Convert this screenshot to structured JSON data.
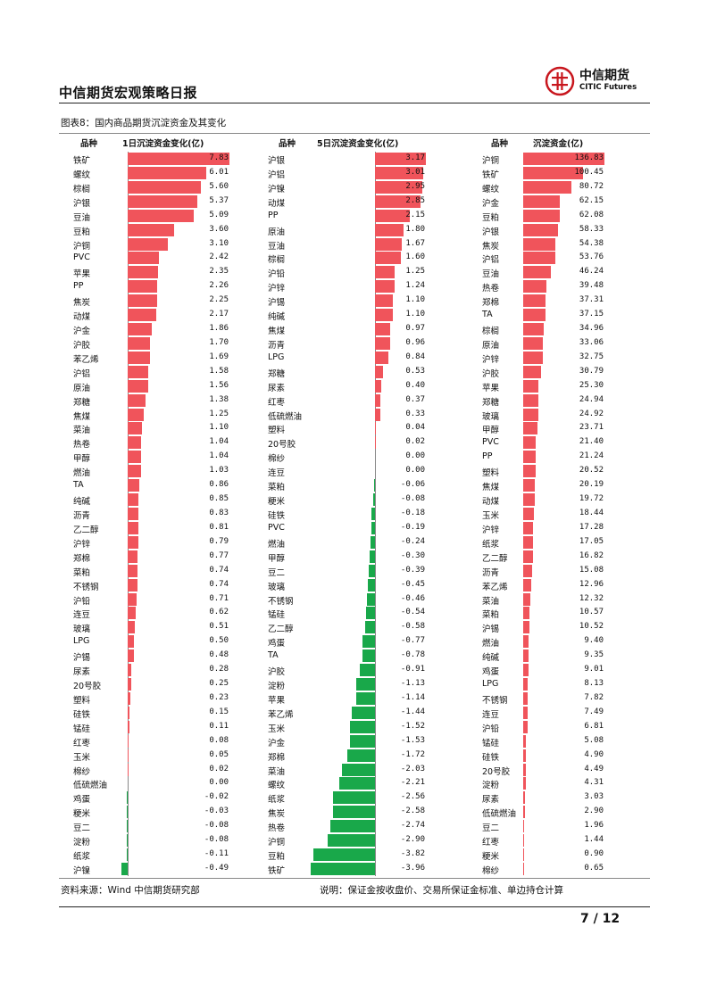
{
  "header": {
    "title": "中信期货宏观策略日报",
    "logo_cn": "中信期货",
    "logo_en": "CITIC Futures"
  },
  "figure": {
    "caption": "图表8：国内商品期货沉淀资金及其变化"
  },
  "footer": {
    "source": "资料来源：Wind 中信期货研究部",
    "note": "说明：保证金按收盘价、交易所保证金标准、单边持仓计算",
    "page": "7 / 12"
  },
  "colors": {
    "positive": "#f0545b",
    "negative": "#19a84a"
  },
  "chart_data": [
    {
      "type": "bar",
      "title": "1日沉淀资金变化(亿)",
      "category_header": "品种",
      "categories": [
        "铁矿",
        "螺纹",
        "棕榈",
        "沪银",
        "豆油",
        "豆粕",
        "沪铜",
        "PVC",
        "苹果",
        "PP",
        "焦炭",
        "动煤",
        "沪金",
        "沪胶",
        "苯乙烯",
        "沪铝",
        "原油",
        "郑糖",
        "焦煤",
        "菜油",
        "热卷",
        "甲醇",
        "燃油",
        "TA",
        "纯碱",
        "沥青",
        "乙二醇",
        "沪锌",
        "郑棉",
        "菜粕",
        "不锈钢",
        "沪铅",
        "连豆",
        "玻璃",
        "LPG",
        "沪锡",
        "尿素",
        "20号胶",
        "塑料",
        "硅铁",
        "锰硅",
        "红枣",
        "玉米",
        "棉纱",
        "低硫燃油",
        "鸡蛋",
        "粳米",
        "豆二",
        "淀粉",
        "纸浆",
        "沪镍"
      ],
      "values": [
        7.83,
        6.01,
        5.6,
        5.37,
        5.09,
        3.6,
        3.1,
        2.42,
        2.35,
        2.26,
        2.25,
        2.17,
        1.86,
        1.7,
        1.69,
        1.58,
        1.56,
        1.38,
        1.25,
        1.1,
        1.04,
        1.04,
        1.03,
        0.86,
        0.85,
        0.83,
        0.81,
        0.79,
        0.77,
        0.74,
        0.74,
        0.71,
        0.62,
        0.51,
        0.5,
        0.48,
        0.28,
        0.25,
        0.23,
        0.15,
        0.11,
        0.08,
        0.05,
        0.02,
        0.0,
        -0.02,
        -0.03,
        -0.08,
        -0.08,
        -0.11,
        -0.49
      ],
      "labels": [
        "7.83",
        "6.01",
        "5.60",
        "5.37",
        "5.09",
        "3.60",
        "3.10",
        "2.42",
        "2.35",
        "2.26",
        "2.25",
        "2.17",
        "1.86",
        "1.70",
        "1.69",
        "1.58",
        "1.56",
        "1.38",
        "1.25",
        "1.10",
        "1.04",
        "1.04",
        "1.03",
        "0.86",
        "0.85",
        "0.83",
        "0.81",
        "0.79",
        "0.77",
        "0.74",
        "0.74",
        "0.71",
        "0.62",
        "0.51",
        "0.50",
        "0.48",
        "0.28",
        "0.25",
        "0.23",
        "0.15",
        "0.11",
        "0.08",
        "0.05",
        "0.02",
        "0.00",
        "-0.02",
        "-0.03",
        "-0.08",
        "-0.08",
        "-0.11",
        "-0.49"
      ],
      "xlim": [
        -0.49,
        7.83
      ]
    },
    {
      "type": "bar",
      "title": "5日沉淀资金变化(亿)",
      "category_header": "品种",
      "categories": [
        "沪银",
        "沪铝",
        "沪镍",
        "动煤",
        "PP",
        "原油",
        "豆油",
        "棕榈",
        "沪铅",
        "沪锌",
        "沪锡",
        "纯碱",
        "焦煤",
        "沥青",
        "LPG",
        "郑糖",
        "尿素",
        "红枣",
        "低硫燃油",
        "塑料",
        "20号胶",
        "棉纱",
        "连豆",
        "菜粕",
        "粳米",
        "硅铁",
        "PVC",
        "燃油",
        "甲醇",
        "豆二",
        "玻璃",
        "不锈钢",
        "锰硅",
        "乙二醇",
        "鸡蛋",
        "TA",
        "沪胶",
        "淀粉",
        "苹果",
        "苯乙烯",
        "玉米",
        "沪金",
        "郑棉",
        "菜油",
        "螺纹",
        "纸浆",
        "焦炭",
        "热卷",
        "沪铜",
        "豆粕",
        "铁矿"
      ],
      "values": [
        3.17,
        3.01,
        2.95,
        2.85,
        2.15,
        1.8,
        1.67,
        1.6,
        1.25,
        1.24,
        1.1,
        1.1,
        0.97,
        0.96,
        0.84,
        0.53,
        0.4,
        0.37,
        0.33,
        0.04,
        0.02,
        0.0,
        0.0,
        -0.06,
        -0.08,
        -0.18,
        -0.19,
        -0.24,
        -0.3,
        -0.39,
        -0.45,
        -0.46,
        -0.54,
        -0.58,
        -0.77,
        -0.78,
        -0.91,
        -1.13,
        -1.14,
        -1.44,
        -1.52,
        -1.53,
        -1.72,
        -2.03,
        -2.21,
        -2.56,
        -2.58,
        -2.74,
        -2.9,
        -3.82,
        -3.96
      ],
      "labels": [
        "3.17",
        "3.01",
        "2.95",
        "2.85",
        "2.15",
        "1.80",
        "1.67",
        "1.60",
        "1.25",
        "1.24",
        "1.10",
        "1.10",
        "0.97",
        "0.96",
        "0.84",
        "0.53",
        "0.40",
        "0.37",
        "0.33",
        "0.04",
        "0.02",
        "0.00",
        "0.00",
        "-0.06",
        "-0.08",
        "-0.18",
        "-0.19",
        "-0.24",
        "-0.30",
        "-0.39",
        "-0.45",
        "-0.46",
        "-0.54",
        "-0.58",
        "-0.77",
        "-0.78",
        "-0.91",
        "-1.13",
        "-1.14",
        "-1.44",
        "-1.52",
        "-1.53",
        "-1.72",
        "-2.03",
        "-2.21",
        "-2.56",
        "-2.58",
        "-2.74",
        "-2.90",
        "-3.82",
        "-3.96"
      ],
      "xlim": [
        -3.96,
        3.17
      ]
    },
    {
      "type": "bar",
      "title": "沉淀资金(亿)",
      "category_header": "品种",
      "categories": [
        "沪铜",
        "铁矿",
        "螺纹",
        "沪金",
        "豆粕",
        "沪银",
        "焦炭",
        "沪铝",
        "豆油",
        "热卷",
        "郑棉",
        "TA",
        "棕榈",
        "原油",
        "沪锌",
        "沪胶",
        "苹果",
        "郑糖",
        "玻璃",
        "甲醇",
        "PVC",
        "PP",
        "塑料",
        "焦煤",
        "动煤",
        "玉米",
        "沪锌",
        "纸浆",
        "乙二醇",
        "沥青",
        "苯乙烯",
        "菜油",
        "菜粕",
        "沪锡",
        "燃油",
        "纯碱",
        "鸡蛋",
        "LPG",
        "不锈钢",
        "连豆",
        "沪铅",
        "锰硅",
        "硅铁",
        "20号胶",
        "淀粉",
        "尿素",
        "低硫燃油",
        "豆二",
        "红枣",
        "粳米",
        "棉纱"
      ],
      "values": [
        136.83,
        100.45,
        80.72,
        62.15,
        62.08,
        58.33,
        54.38,
        53.76,
        46.24,
        39.48,
        37.31,
        37.15,
        34.96,
        33.06,
        32.75,
        30.79,
        25.3,
        24.94,
        24.92,
        23.71,
        21.4,
        21.24,
        20.52,
        20.19,
        19.72,
        18.44,
        17.28,
        17.05,
        16.82,
        15.08,
        12.96,
        12.32,
        10.57,
        10.52,
        9.4,
        9.35,
        9.01,
        8.13,
        7.82,
        7.49,
        6.81,
        5.08,
        4.9,
        4.49,
        4.31,
        3.03,
        2.9,
        1.96,
        1.44,
        0.9,
        0.65
      ],
      "labels": [
        "136.83",
        "100.45",
        "80.72",
        "62.15",
        "62.08",
        "58.33",
        "54.38",
        "53.76",
        "46.24",
        "39.48",
        "37.31",
        "37.15",
        "34.96",
        "33.06",
        "32.75",
        "30.79",
        "25.30",
        "24.94",
        "24.92",
        "23.71",
        "21.40",
        "21.24",
        "20.52",
        "20.19",
        "19.72",
        "18.44",
        "17.28",
        "17.05",
        "16.82",
        "15.08",
        "12.96",
        "12.32",
        "10.57",
        "10.52",
        "9.40",
        "9.35",
        "9.01",
        "8.13",
        "7.82",
        "7.49",
        "6.81",
        "5.08",
        "4.90",
        "4.49",
        "4.31",
        "3.03",
        "2.90",
        "1.96",
        "1.44",
        "0.90",
        "0.65"
      ],
      "xlim": [
        0,
        136.83
      ]
    }
  ]
}
